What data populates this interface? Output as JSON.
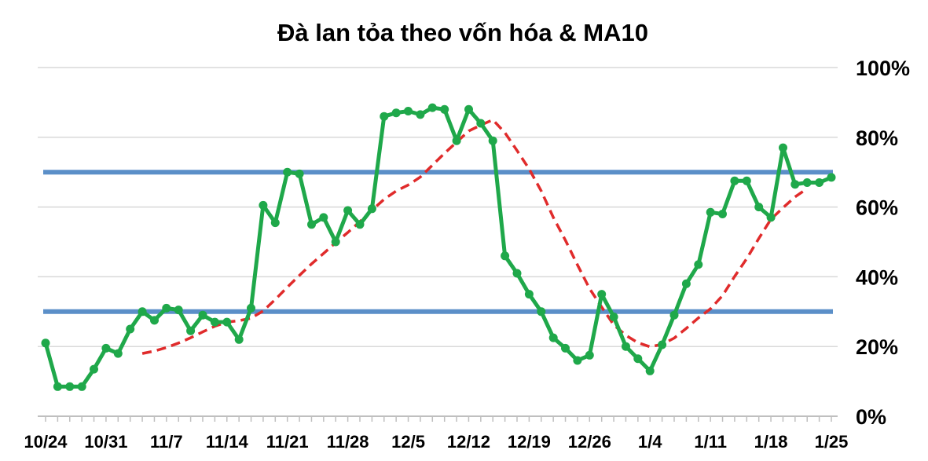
{
  "chart_data": {
    "type": "line",
    "title": "Đà lan tỏa theo vốn hóa & MA10",
    "xlabel": "",
    "ylabel": "",
    "ylim": [
      0,
      100
    ],
    "y_tick_labels": [
      "0%",
      "20%",
      "40%",
      "60%",
      "80%",
      "100%"
    ],
    "x_tick_labels": [
      "10/24",
      "10/31",
      "11/7",
      "11/14",
      "11/21",
      "11/28",
      "12/5",
      "12/12",
      "12/19",
      "12/26",
      "1/4",
      "1/11",
      "1/18",
      "1/25"
    ],
    "grid": true,
    "legend": "none",
    "reference_lines": [
      {
        "y": 70,
        "color": "#5b8fc8"
      },
      {
        "y": 30,
        "color": "#5b8fc8"
      }
    ],
    "series": [
      {
        "color": "#1fa84a",
        "style": "solid-with-markers",
        "values": [
          21,
          8.5,
          8.5,
          8.5,
          13.5,
          19.5,
          18,
          25,
          30,
          27.5,
          31,
          30.5,
          24.5,
          29,
          27,
          27,
          22,
          31,
          60.5,
          55.5,
          70,
          69.5,
          55,
          57,
          50,
          59,
          55,
          59.5,
          86,
          87,
          87.5,
          86.5,
          88.5,
          88,
          79,
          88,
          84,
          79,
          46,
          41,
          35,
          30,
          22.5,
          19.5,
          16,
          17.5,
          35,
          28.5,
          20,
          16.5,
          13,
          20.5,
          29,
          38,
          43.5,
          58.5,
          58,
          67.5,
          67.5,
          60,
          57,
          77,
          66.5,
          67,
          67,
          68.5
        ]
      },
      {
        "color": "#e02b2b",
        "style": "dashed",
        "start_index": 8,
        "values": [
          18,
          18.7,
          19.7,
          21,
          22.5,
          24.2,
          25.8,
          27,
          27.4,
          28.1,
          30.2,
          33.5,
          37,
          40.4,
          43.7,
          46.7,
          49.8,
          52.7,
          55.8,
          59.1,
          62.2,
          64.6,
          66.3,
          68.6,
          72,
          75.4,
          78.6,
          81.8,
          83.5,
          85,
          81.3,
          76.2,
          70.9,
          64.6,
          57,
          50.5,
          43.4,
          36.6,
          31.3,
          26.2,
          23.2,
          21.1,
          19.9,
          20.6,
          22.4,
          25.2,
          28.2,
          30.8,
          34.6,
          40.1,
          45.2,
          51,
          56.5,
          59.8,
          62.9,
          65.3
        ]
      }
    ]
  }
}
